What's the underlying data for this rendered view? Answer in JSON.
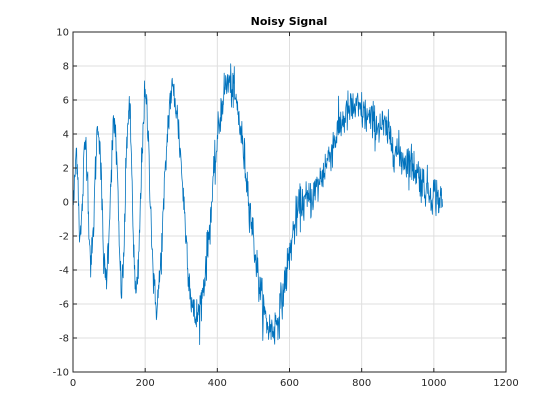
{
  "chart_data": {
    "type": "line",
    "title": "Noisy Signal",
    "xlabel": "",
    "ylabel": "",
    "xlim": [
      0,
      1200
    ],
    "ylim": [
      -10,
      10
    ],
    "x_ticks": [
      0,
      200,
      400,
      600,
      800,
      1000,
      1200
    ],
    "y_ticks": [
      -10,
      -8,
      -6,
      -4,
      -2,
      0,
      2,
      4,
      6,
      8,
      10
    ],
    "grid": true,
    "legend": "none",
    "series_color": "#0072bd",
    "series": [
      {
        "x_start": 1,
        "x_end": 1024,
        "envelope": [
          {
            "x": 1,
            "y": 0
          },
          {
            "x": 10,
            "y": 3
          },
          {
            "x": 20,
            "y": -2
          },
          {
            "x": 35,
            "y": 3.5
          },
          {
            "x": 50,
            "y": -3.5
          },
          {
            "x": 70,
            "y": 4.5
          },
          {
            "x": 90,
            "y": -4.5
          },
          {
            "x": 115,
            "y": 4.5
          },
          {
            "x": 135,
            "y": -5
          },
          {
            "x": 155,
            "y": 5.5
          },
          {
            "x": 175,
            "y": -5.5
          },
          {
            "x": 200,
            "y": 6
          },
          {
            "x": 230,
            "y": -6
          },
          {
            "x": 275,
            "y": 6.5
          },
          {
            "x": 340,
            "y": -6.8
          },
          {
            "x": 430,
            "y": 7
          },
          {
            "x": 550,
            "y": -7.5
          },
          {
            "x": 640,
            "y": 0
          },
          {
            "x": 780,
            "y": 5.5
          },
          {
            "x": 850,
            "y": 4.5
          },
          {
            "x": 920,
            "y": 2.5
          },
          {
            "x": 1000,
            "y": 0.5
          },
          {
            "x": 1024,
            "y": 0
          }
        ],
        "noise_amplitude": 1.0
      }
    ]
  }
}
